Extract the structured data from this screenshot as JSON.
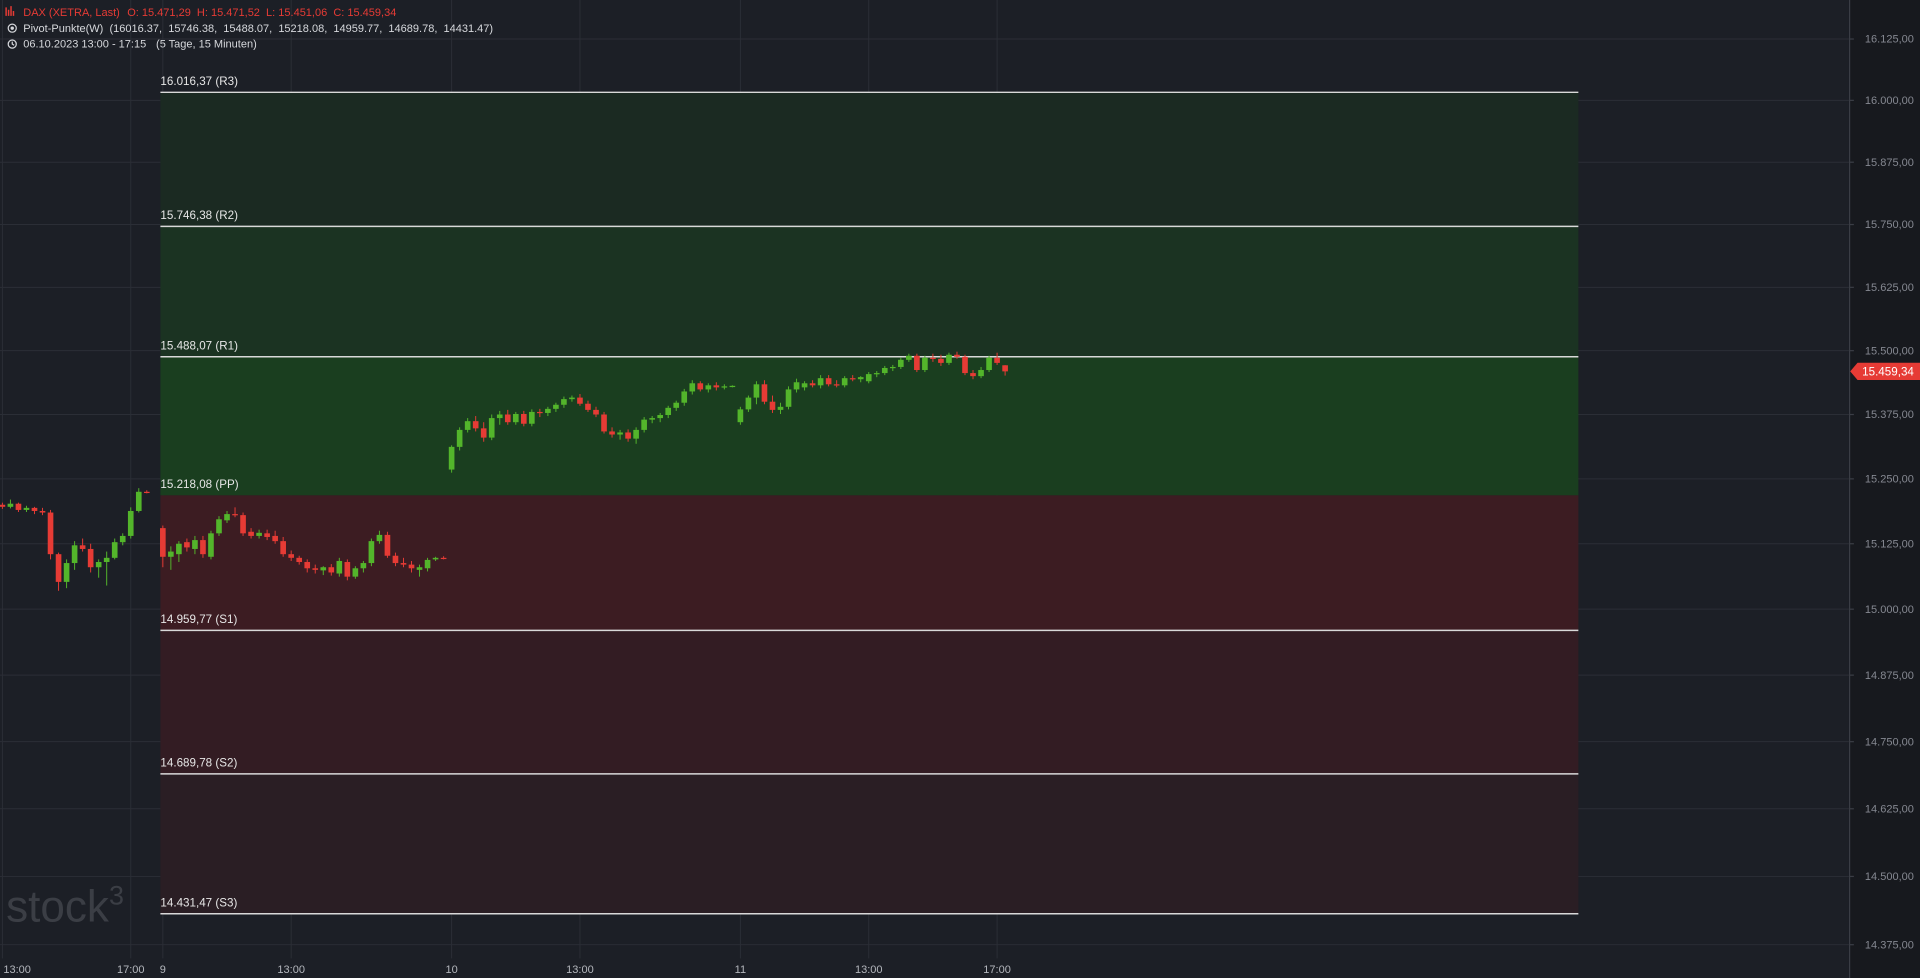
{
  "chart_data": {
    "type": "candlestick",
    "title": "DAX (XETRA, Last)",
    "ohlc_label": "O: 15.471,29  H: 15.471,52  L: 15.451,06  C: 15.459,34",
    "indicator": "Pivot-Punkte(W)",
    "indicator_values": "(16016.37,  15746.38,  15488.07,  15218.08,  14959.77,  14689.78,  14431.47)",
    "period": "06.10.2023 13:00 - 17:15",
    "period_note": "(5 Tage, 15 Minuten)",
    "watermark": "stock",
    "watermark_sup": "3",
    "log_scale": true,
    "grid": true,
    "up_color": "#53b52b",
    "down_color": "#e63b35",
    "xlim": [
      -0.3,
      230.2
    ],
    "ylim": [
      14350,
      16205
    ],
    "xticks": [
      {
        "value": 0,
        "label": "13:00"
      },
      {
        "value": 16,
        "label": "17:00"
      },
      {
        "value": 20,
        "label": "9"
      },
      {
        "value": 36,
        "label": "13:00"
      },
      {
        "value": 56,
        "label": "10"
      },
      {
        "value": 72,
        "label": "13:00"
      },
      {
        "value": 92,
        "label": "11"
      },
      {
        "value": 108,
        "label": "13:00"
      },
      {
        "value": 124,
        "label": "17:00"
      }
    ],
    "yticks": [
      {
        "value": 16125,
        "label": "16.125,00"
      },
      {
        "value": 16000,
        "label": "16.000,00"
      },
      {
        "value": 15875,
        "label": "15.875,00"
      },
      {
        "value": 15750,
        "label": "15.750,00"
      },
      {
        "value": 15625,
        "label": "15.625,00"
      },
      {
        "value": 15500,
        "label": "15.500,00"
      },
      {
        "value": 15375,
        "label": "15.375,00"
      },
      {
        "value": 15250,
        "label": "15.250,00"
      },
      {
        "value": 15125,
        "label": "15.125,00"
      },
      {
        "value": 15000,
        "label": "15.000,00"
      },
      {
        "value": 14875,
        "label": "14.875,00"
      },
      {
        "value": 14750,
        "label": "14.750,00"
      },
      {
        "value": 14625,
        "label": "14.625,00"
      },
      {
        "value": 14500,
        "label": "14.500,00"
      },
      {
        "value": 14375,
        "label": "14.375,00"
      }
    ],
    "pivot_levels": [
      {
        "value": 16016.37,
        "label": "16.016,37 (R3)"
      },
      {
        "value": 15746.38,
        "label": "15.746,38 (R2)"
      },
      {
        "value": 15488.07,
        "label": "15.488,07 (R1)"
      },
      {
        "value": 15218.08,
        "label": "15.218,08 (PP)"
      },
      {
        "value": 14959.77,
        "label": "14.959,77 (S1)"
      },
      {
        "value": 14689.78,
        "label": "14.689,78 (S2)"
      },
      {
        "value": 14431.47,
        "label": "14.431,47 (S3)"
      }
    ],
    "zone_colors": [
      "#1b2a22",
      "#1b3322",
      "#1a3e1f",
      "#3c1c22",
      "#331c23",
      "#2a1e24"
    ],
    "last_label": {
      "value": 15459.34,
      "label": "15.459,34"
    },
    "x": [
      0,
      1,
      2,
      3,
      4,
      5,
      6,
      7,
      8,
      9,
      10,
      11,
      12,
      13,
      14,
      15,
      16,
      17,
      18,
      20,
      21,
      22,
      23,
      24,
      25,
      26,
      27,
      28,
      29,
      30,
      31,
      32,
      33,
      34,
      35,
      36,
      37,
      38,
      39,
      40,
      41,
      42,
      43,
      44,
      45,
      46,
      47,
      48,
      49,
      50,
      51,
      52,
      53,
      54,
      55,
      56,
      57,
      58,
      59,
      60,
      61,
      62,
      63,
      64,
      65,
      66,
      67,
      68,
      69,
      70,
      71,
      72,
      73,
      74,
      75,
      76,
      77,
      78,
      79,
      80,
      81,
      82,
      83,
      84,
      85,
      86,
      87,
      88,
      89,
      90,
      91,
      92,
      93,
      94,
      95,
      96,
      97,
      98,
      99,
      100,
      101,
      102,
      103,
      104,
      105,
      106,
      107,
      108,
      109,
      110,
      111,
      112,
      113,
      114,
      115,
      116,
      117,
      118,
      119,
      120,
      121,
      122,
      123,
      124,
      125
    ],
    "ohlc": [
      [
        15200,
        15204,
        15192,
        15196
      ],
      [
        15196,
        15210,
        15193,
        15202
      ],
      [
        15202,
        15204,
        15186,
        15190
      ],
      [
        15190,
        15198,
        15186,
        15194
      ],
      [
        15194,
        15196,
        15182,
        15188
      ],
      [
        15188,
        15194,
        15180,
        15185
      ],
      [
        15185,
        15190,
        15095,
        15105
      ],
      [
        15105,
        15108,
        15035,
        15052
      ],
      [
        15052,
        15095,
        15040,
        15088
      ],
      [
        15088,
        15130,
        15075,
        15122
      ],
      [
        15122,
        15135,
        15110,
        15115
      ],
      [
        15115,
        15125,
        15070,
        15080
      ],
      [
        15080,
        15095,
        15060,
        15090
      ],
      [
        15090,
        15110,
        15045,
        15098
      ],
      [
        15098,
        15135,
        15095,
        15128
      ],
      [
        15128,
        15145,
        15122,
        15140
      ],
      [
        15140,
        15195,
        15135,
        15188
      ],
      [
        15188,
        15232,
        15185,
        15225
      ],
      [
        15225,
        15228,
        15222,
        15224
      ],
      [
        15155,
        15160,
        15080,
        15100
      ],
      [
        15100,
        15120,
        15075,
        15110
      ],
      [
        15105,
        15130,
        15090,
        15125
      ],
      [
        15128,
        15135,
        15110,
        15118
      ],
      [
        15115,
        15140,
        15105,
        15132
      ],
      [
        15132,
        15140,
        15098,
        15105
      ],
      [
        15100,
        15150,
        15095,
        15145
      ],
      [
        15145,
        15178,
        15140,
        15172
      ],
      [
        15170,
        15188,
        15165,
        15182
      ],
      [
        15182,
        15195,
        15176,
        15180
      ],
      [
        15180,
        15185,
        15140,
        15145
      ],
      [
        15148,
        15155,
        15135,
        15140
      ],
      [
        15140,
        15152,
        15135,
        15146
      ],
      [
        15145,
        15152,
        15132,
        15138
      ],
      [
        15140,
        15150,
        15125,
        15130
      ],
      [
        15130,
        15138,
        15100,
        15105
      ],
      [
        15105,
        15112,
        15092,
        15098
      ],
      [
        15098,
        15102,
        15085,
        15090
      ],
      [
        15090,
        15095,
        15070,
        15078
      ],
      [
        15078,
        15085,
        15068,
        15075
      ],
      [
        15074,
        15082,
        15065,
        15080
      ],
      [
        15080,
        15086,
        15064,
        15070
      ],
      [
        15068,
        15098,
        15062,
        15092
      ],
      [
        15090,
        15095,
        15055,
        15062
      ],
      [
        15062,
        15082,
        15058,
        15078
      ],
      [
        15078,
        15092,
        15070,
        15088
      ],
      [
        15088,
        15135,
        15082,
        15130
      ],
      [
        15130,
        15150,
        15125,
        15142
      ],
      [
        15142,
        15148,
        15098,
        15102
      ],
      [
        15102,
        15108,
        15082,
        15088
      ],
      [
        15088,
        15098,
        15080,
        15085
      ],
      [
        15085,
        15092,
        15070,
        15078
      ],
      [
        15075,
        15085,
        15062,
        15080
      ],
      [
        15078,
        15098,
        15072,
        15094
      ],
      [
        15095,
        15100,
        15092,
        15098
      ],
      [
        15098,
        15101,
        15095,
        15097
      ],
      [
        15268,
        15315,
        15262,
        15312
      ],
      [
        15312,
        15350,
        15305,
        15345
      ],
      [
        15345,
        15368,
        15340,
        15362
      ],
      [
        15362,
        15372,
        15342,
        15348
      ],
      [
        15348,
        15360,
        15322,
        15330
      ],
      [
        15330,
        15375,
        15325,
        15368
      ],
      [
        15368,
        15382,
        15355,
        15375
      ],
      [
        15375,
        15384,
        15355,
        15360
      ],
      [
        15360,
        15380,
        15355,
        15376
      ],
      [
        15376,
        15382,
        15352,
        15357
      ],
      [
        15357,
        15385,
        15352,
        15380
      ],
      [
        15380,
        15386,
        15370,
        15378
      ],
      [
        15378,
        15390,
        15372,
        15386
      ],
      [
        15386,
        15398,
        15380,
        15394
      ],
      [
        15394,
        15410,
        15388,
        15405
      ],
      [
        15405,
        15412,
        15400,
        15408
      ],
      [
        15408,
        15415,
        15392,
        15396
      ],
      [
        15396,
        15402,
        15380,
        15384
      ],
      [
        15384,
        15390,
        15370,
        15375
      ],
      [
        15375,
        15380,
        15338,
        15342
      ],
      [
        15342,
        15350,
        15330,
        15336
      ],
      [
        15336,
        15345,
        15326,
        15340
      ],
      [
        15340,
        15346,
        15322,
        15328
      ],
      [
        15328,
        15350,
        15318,
        15345
      ],
      [
        15345,
        15370,
        15340,
        15365
      ],
      [
        15365,
        15372,
        15358,
        15368
      ],
      [
        15368,
        15378,
        15360,
        15374
      ],
      [
        15374,
        15392,
        15368,
        15388
      ],
      [
        15388,
        15402,
        15382,
        15398
      ],
      [
        15398,
        15425,
        15392,
        15420
      ],
      [
        15420,
        15442,
        15414,
        15436
      ],
      [
        15436,
        15440,
        15420,
        15424
      ],
      [
        15424,
        15436,
        15418,
        15432
      ],
      [
        15432,
        15438,
        15422,
        15428
      ],
      [
        15428,
        15434,
        15424,
        15430
      ],
      [
        15430,
        15432,
        15428,
        15431
      ],
      [
        15360,
        15390,
        15355,
        15385
      ],
      [
        15385,
        15412,
        15380,
        15408
      ],
      [
        15408,
        15440,
        15395,
        15434
      ],
      [
        15434,
        15442,
        15395,
        15400
      ],
      [
        15400,
        15412,
        15378,
        15384
      ],
      [
        15384,
        15398,
        15376,
        15390
      ],
      [
        15390,
        15430,
        15385,
        15424
      ],
      [
        15424,
        15445,
        15418,
        15438
      ],
      [
        15428,
        15440,
        15422,
        15436
      ],
      [
        15436,
        15442,
        15428,
        15432
      ],
      [
        15432,
        15452,
        15426,
        15446
      ],
      [
        15446,
        15452,
        15430,
        15434
      ],
      [
        15434,
        15442,
        15428,
        15432
      ],
      [
        15432,
        15450,
        15428,
        15446
      ],
      [
        15446,
        15452,
        15440,
        15444
      ],
      [
        15444,
        15450,
        15438,
        15448
      ],
      [
        15440,
        15458,
        15436,
        15454
      ],
      [
        15454,
        15460,
        15448,
        15456
      ],
      [
        15456,
        15470,
        15452,
        15466
      ],
      [
        15466,
        15472,
        15460,
        15468
      ],
      [
        15468,
        15486,
        15464,
        15482
      ],
      [
        15482,
        15494,
        15478,
        15490
      ],
      [
        15490,
        15494,
        15458,
        15462
      ],
      [
        15462,
        15490,
        15458,
        15486
      ],
      [
        15486,
        15494,
        15478,
        15484
      ],
      [
        15484,
        15492,
        15470,
        15476
      ],
      [
        15476,
        15496,
        15472,
        15492
      ],
      [
        15492,
        15498,
        15484,
        15488
      ],
      [
        15488,
        15492,
        15452,
        15456
      ],
      [
        15456,
        15462,
        15444,
        15450
      ],
      [
        15450,
        15468,
        15446,
        15462
      ],
      [
        15462,
        15490,
        15458,
        15486
      ],
      [
        15486,
        15496,
        15472,
        15476
      ],
      [
        15471.29,
        15471.52,
        15451.06,
        15459.34
      ]
    ]
  }
}
